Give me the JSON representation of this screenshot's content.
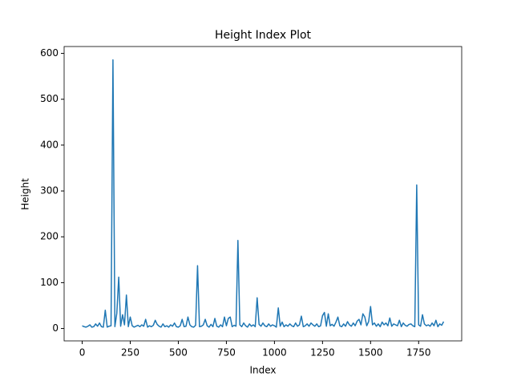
{
  "chart_data": {
    "type": "line",
    "title": "Height Index Plot",
    "xlabel": "Index",
    "ylabel": "Height",
    "x": [
      0,
      10,
      20,
      30,
      40,
      50,
      60,
      70,
      80,
      90,
      100,
      110,
      120,
      130,
      140,
      150,
      160,
      170,
      180,
      190,
      200,
      210,
      220,
      230,
      240,
      250,
      260,
      270,
      280,
      290,
      300,
      310,
      320,
      330,
      340,
      350,
      360,
      370,
      380,
      390,
      400,
      410,
      420,
      430,
      440,
      450,
      460,
      470,
      480,
      490,
      500,
      510,
      520,
      530,
      540,
      550,
      560,
      570,
      580,
      590,
      600,
      610,
      620,
      630,
      640,
      650,
      660,
      670,
      680,
      690,
      700,
      710,
      720,
      730,
      740,
      750,
      760,
      770,
      780,
      790,
      800,
      810,
      820,
      830,
      840,
      850,
      860,
      870,
      880,
      890,
      900,
      910,
      920,
      930,
      940,
      950,
      960,
      970,
      980,
      990,
      1000,
      1010,
      1020,
      1030,
      1040,
      1050,
      1060,
      1070,
      1080,
      1090,
      1100,
      1110,
      1120,
      1130,
      1140,
      1150,
      1160,
      1170,
      1180,
      1190,
      1200,
      1210,
      1220,
      1230,
      1240,
      1250,
      1260,
      1270,
      1280,
      1290,
      1300,
      1310,
      1320,
      1330,
      1340,
      1350,
      1360,
      1370,
      1380,
      1390,
      1400,
      1410,
      1420,
      1430,
      1440,
      1450,
      1460,
      1470,
      1480,
      1490,
      1500,
      1510,
      1520,
      1530,
      1540,
      1550,
      1560,
      1570,
      1580,
      1590,
      1600,
      1610,
      1620,
      1630,
      1640,
      1650,
      1660,
      1670,
      1680,
      1690,
      1700,
      1710,
      1720,
      1730,
      1740,
      1750,
      1760,
      1770,
      1780,
      1790,
      1800,
      1810,
      1820,
      1830,
      1840,
      1850,
      1860,
      1870,
      1880
    ],
    "series": [
      {
        "color": "#1f77b4",
        "values": [
          6,
          4,
          3,
          5,
          8,
          3,
          4,
          10,
          5,
          12,
          4,
          3,
          40,
          3,
          5,
          6,
          586,
          4,
          33,
          112,
          5,
          30,
          8,
          73,
          4,
          25,
          6,
          3,
          5,
          7,
          4,
          8,
          5,
          20,
          3,
          6,
          4,
          7,
          18,
          9,
          5,
          3,
          10,
          4,
          6,
          3,
          8,
          5,
          12,
          4,
          3,
          6,
          20,
          4,
          5,
          25,
          8,
          4,
          3,
          7,
          137,
          4,
          5,
          8,
          20,
          6,
          3,
          9,
          4,
          22,
          5,
          3,
          8,
          4,
          25,
          6,
          22,
          25,
          4,
          7,
          5,
          192,
          8,
          4,
          12,
          6,
          3,
          10,
          5,
          8,
          4,
          67,
          9,
          5,
          12,
          6,
          4,
          10,
          5,
          8,
          6,
          3,
          45,
          5,
          14,
          4,
          8,
          5,
          10,
          6,
          4,
          12,
          5,
          8,
          27,
          4,
          6,
          10,
          5,
          12,
          8,
          5,
          10,
          4,
          6,
          28,
          35,
          5,
          32,
          6,
          9,
          5,
          14,
          25,
          6,
          4,
          10,
          5,
          15,
          8,
          5,
          12,
          6,
          16,
          20,
          8,
          32,
          25,
          6,
          15,
          48,
          8,
          12,
          5,
          10,
          4,
          14,
          8,
          12,
          6,
          23,
          5,
          10,
          8,
          6,
          18,
          4,
          12,
          7,
          5,
          9,
          10,
          6,
          4,
          313,
          8,
          5,
          30,
          10,
          6,
          8,
          5,
          12,
          6,
          18,
          4,
          10,
          7,
          15
        ]
      }
    ],
    "xlim": [
      -94,
      1974
    ],
    "ylim": [
      -27,
      615
    ],
    "xticks": [
      0,
      250,
      500,
      750,
      1000,
      1250,
      1500,
      1750
    ],
    "yticks": [
      0,
      100,
      200,
      300,
      400,
      500,
      600
    ]
  }
}
